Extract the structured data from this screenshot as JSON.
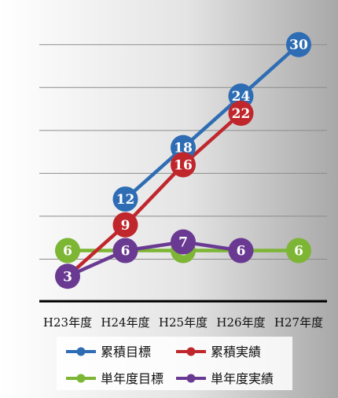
{
  "chart_data": {
    "type": "line",
    "title": "",
    "xlabel": "",
    "ylabel": "",
    "categories": [
      "H23年度",
      "H24年度",
      "H25年度",
      "H26年度",
      "H27年度"
    ],
    "ylim": [
      0,
      33
    ],
    "grid": true,
    "legend_position": "bottom",
    "series": [
      {
        "name": "累積目標",
        "color": "#2e6db4",
        "values": [
          null,
          12,
          18,
          24,
          30
        ],
        "labels": [
          "",
          "12",
          "18",
          "24",
          "30"
        ]
      },
      {
        "name": "累積実績",
        "color": "#c0272d",
        "values": [
          3,
          9,
          16,
          22,
          null
        ],
        "labels": [
          "",
          "9",
          "16",
          "22",
          ""
        ]
      },
      {
        "name": "単年度目標",
        "color": "#7db535",
        "values": [
          6,
          6,
          6,
          6,
          6
        ],
        "labels": [
          "6",
          "",
          "6",
          "",
          "6"
        ]
      },
      {
        "name": "単年度実績",
        "color": "#6a3a93",
        "values": [
          3,
          6,
          7,
          6,
          null
        ],
        "labels": [
          "3",
          "6",
          "7",
          "6",
          ""
        ]
      }
    ]
  }
}
